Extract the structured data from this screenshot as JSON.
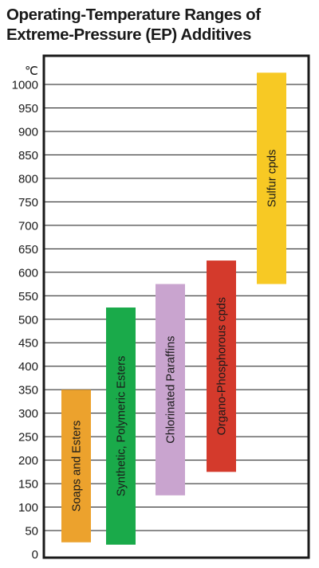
{
  "title": "Operating-Temperature Ranges of Extreme-Pressure (EP) Additives",
  "chart_data": {
    "type": "bar",
    "title": "Operating-Temperature Ranges of Extreme-Pressure (EP) Additives",
    "ylabel": "℃",
    "ylim": [
      0,
      1050
    ],
    "y_ticks": [
      0,
      50,
      100,
      150,
      200,
      250,
      300,
      350,
      400,
      450,
      500,
      550,
      600,
      650,
      700,
      750,
      800,
      850,
      900,
      950,
      1000
    ],
    "grid": true,
    "orientation": "vertical floating ranges",
    "bars": [
      {
        "name": "Soaps and Esters",
        "low": 25,
        "high": 350,
        "color": "#eca22d",
        "text_color": "#1a1a1a"
      },
      {
        "name": "Synthetic, Polymeric Esters",
        "low": 20,
        "high": 525,
        "color": "#1aaa4a",
        "text_color": "#1a1a1a"
      },
      {
        "name": "Chlorinated Paraffins",
        "low": 125,
        "high": 575,
        "color": "#c9a4cf",
        "text_color": "#1a1a1a"
      },
      {
        "name": "Organo-Phosphorous cpds",
        "low": 175,
        "high": 625,
        "color": "#d43a2c",
        "text_color": "#1a1a1a"
      },
      {
        "name": "Sulfur cpds",
        "low": 575,
        "high": 1025,
        "color": "#f7c924",
        "text_color": "#1a1a1a"
      }
    ]
  }
}
